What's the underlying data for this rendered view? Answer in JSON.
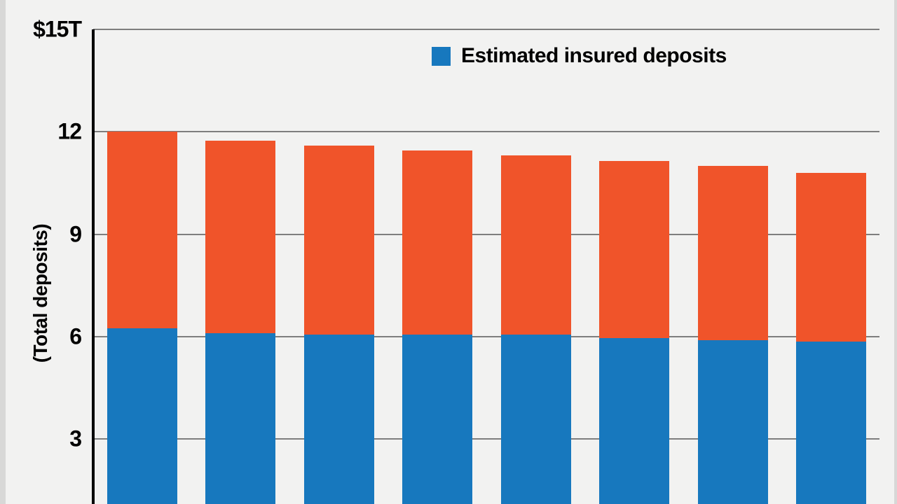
{
  "page": {
    "background_color": "#d8d8d7",
    "card_color": "#f2f2f1"
  },
  "chart_data": {
    "type": "bar",
    "stacked": true,
    "title": "",
    "ylabel": "(Total deposits)",
    "unit": "trillions of US dollars",
    "y_axis": {
      "max": 15,
      "min": 0,
      "ticks": [
        {
          "value": 15,
          "label": "$15T"
        },
        {
          "value": 12,
          "label": "12"
        },
        {
          "value": 9,
          "label": "9"
        },
        {
          "value": 6,
          "label": "6"
        },
        {
          "value": 3,
          "label": "3"
        }
      ],
      "gridlines": true
    },
    "legend": {
      "label": "Estimated insured deposits",
      "color": "#1778be",
      "position": "top-center"
    },
    "x_axis_labels_visible": false,
    "num_bars": 8,
    "bars": [
      {
        "total": 12.0,
        "insured": 6.25
      },
      {
        "total": 11.75,
        "insured": 6.1
      },
      {
        "total": 11.6,
        "insured": 6.05
      },
      {
        "total": 11.45,
        "insured": 6.05
      },
      {
        "total": 11.3,
        "insured": 6.05
      },
      {
        "total": 11.15,
        "insured": 5.95
      },
      {
        "total": 11.0,
        "insured": 5.9
      },
      {
        "total": 10.8,
        "insured": 5.85
      }
    ],
    "colors": {
      "insured_segment": "#1778be",
      "total_segment": "#f0542a",
      "gridline": "#7e7e7e",
      "axis": "#000000",
      "text": "#000000"
    }
  }
}
